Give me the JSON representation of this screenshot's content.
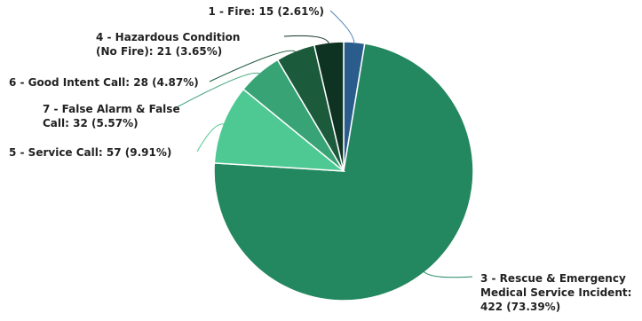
{
  "chart_data": {
    "type": "pie",
    "title": "",
    "slices": [
      {
        "name": "1 - Fire",
        "value": 15,
        "percent": "2.61%",
        "color": "#2a5d8c",
        "label_lines": [
          "1 - Fire: 15 (2.61%)"
        ]
      },
      {
        "name": "3 - Rescue & Emergency Medical Service Incident",
        "value": 422,
        "percent": "73.39%",
        "color": "#238760",
        "label_lines": [
          "3 - Rescue & Emergency",
          "Medical Service Incident:",
          "422 (73.39%)"
        ]
      },
      {
        "name": "5 - Service Call",
        "value": 57,
        "percent": "9.91%",
        "color": "#4fc993",
        "label_lines": [
          "5 - Service Call: 57 (9.91%)"
        ]
      },
      {
        "name": "7 - False Alarm & False Call",
        "value": 32,
        "percent": "5.57%",
        "color": "#38a375",
        "label_lines": [
          "7 - False Alarm & False",
          "Call: 32 (5.57%)"
        ]
      },
      {
        "name": "6 - Good Intent Call",
        "value": 28,
        "percent": "4.87%",
        "color": "#1c5a3c",
        "label_lines": [
          "6 - Good Intent Call: 28 (4.87%)"
        ]
      },
      {
        "name": "4 - Hazardous Condition (No Fire)",
        "value": 21,
        "percent": "3.65%",
        "color": "#0f3322",
        "label_lines": [
          "4 - Hazardous Condition",
          "(No Fire): 21 (3.65%)"
        ]
      }
    ]
  }
}
